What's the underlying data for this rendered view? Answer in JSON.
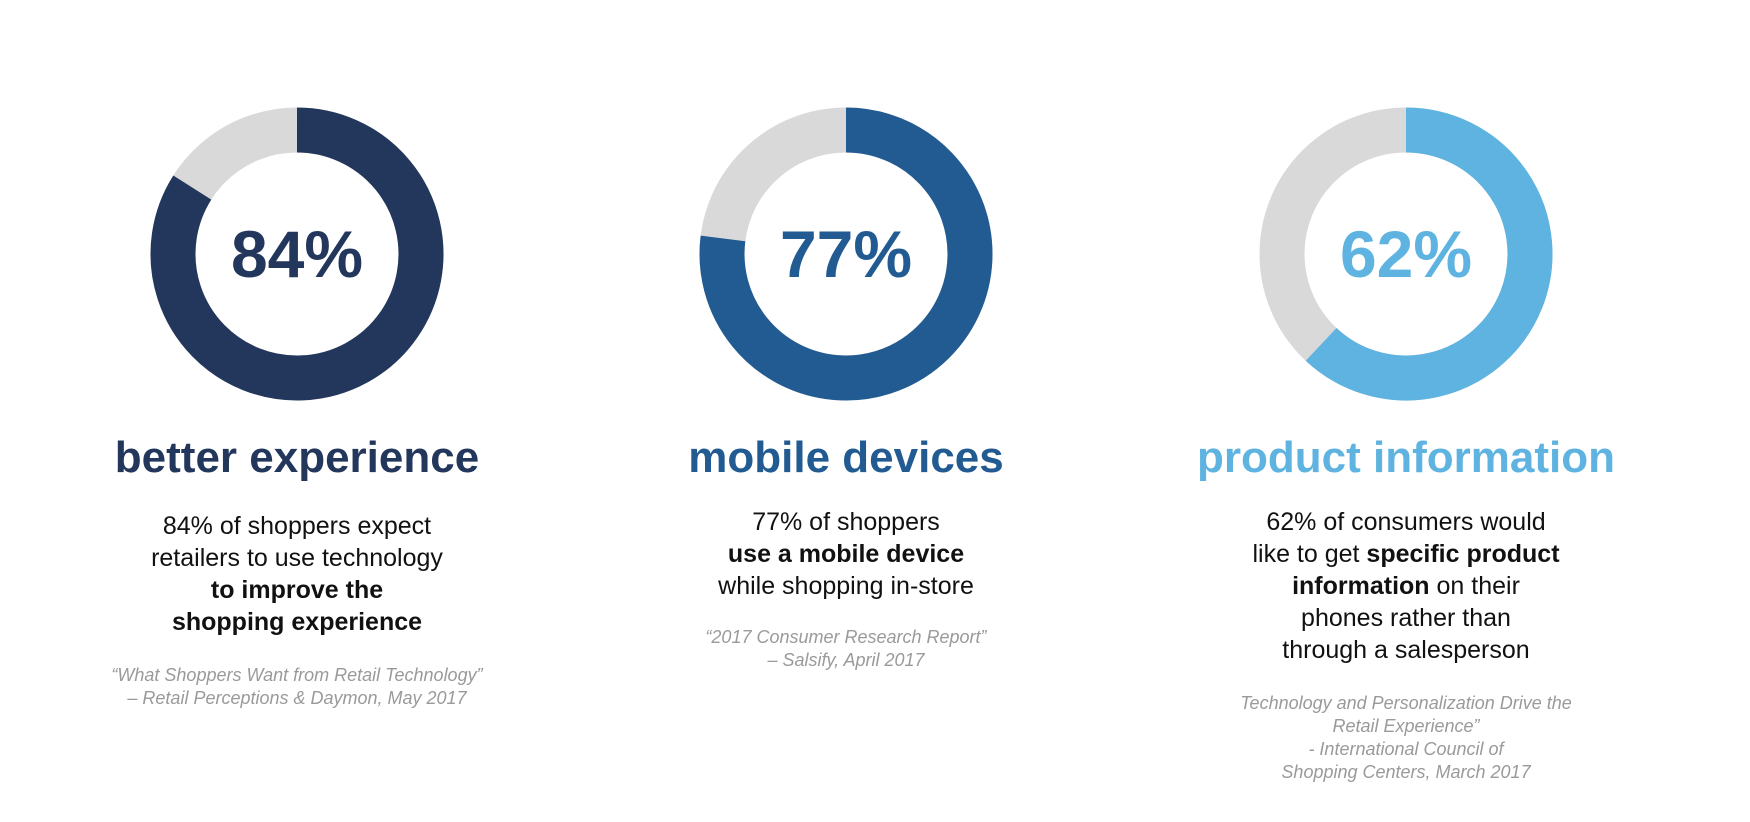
{
  "colors": {
    "track": "#d9d9d9",
    "c1": "#22375b",
    "c2": "#215b92",
    "c3": "#5eb3e0"
  },
  "chart_data": [
    {
      "type": "pie",
      "values": [
        84,
        16
      ],
      "center_label": "84%",
      "title": "better experience",
      "color": "#22375b",
      "description": [
        [
          {
            "text": "84% of shoppers expect",
            "bold": false
          }
        ],
        [
          {
            "text": "retailers to use technology",
            "bold": false
          }
        ],
        [
          {
            "text": "to improve the",
            "bold": true
          }
        ],
        [
          {
            "text": "shopping experience",
            "bold": true
          }
        ]
      ],
      "source": [
        "“What Shoppers Want from Retail Technology”",
        "– Retail Perceptions & Daymon, May 2017"
      ]
    },
    {
      "type": "pie",
      "values": [
        77,
        23
      ],
      "center_label": "77%",
      "title": "mobile devices",
      "color": "#215b92",
      "description": [
        [
          {
            "text": "77% of shoppers",
            "bold": false
          }
        ],
        [
          {
            "text": "use a mobile device",
            "bold": true
          }
        ],
        [
          {
            "text": "while shopping in-store",
            "bold": false
          }
        ]
      ],
      "source": [
        "“2017 Consumer Research Report”",
        "– Salsify, April 2017"
      ]
    },
    {
      "type": "pie",
      "values": [
        62,
        38
      ],
      "center_label": "62%",
      "title": "product information",
      "color": "#5eb3e0",
      "description": [
        [
          {
            "text": "62% of consumers would",
            "bold": false
          }
        ],
        [
          {
            "text": "like to get ",
            "bold": false
          },
          {
            "text": "specific product",
            "bold": true
          }
        ],
        [
          {
            "text": "information",
            "bold": true
          },
          {
            "text": " on their",
            "bold": false
          }
        ],
        [
          {
            "text": "phones rather than",
            "bold": false
          }
        ],
        [
          {
            "text": "through a salesperson",
            "bold": false
          }
        ]
      ],
      "source": [
        "Technology and Personalization Drive the",
        "Retail Experience”",
        "- International Council of",
        "Shopping Centers, March 2017"
      ]
    }
  ]
}
